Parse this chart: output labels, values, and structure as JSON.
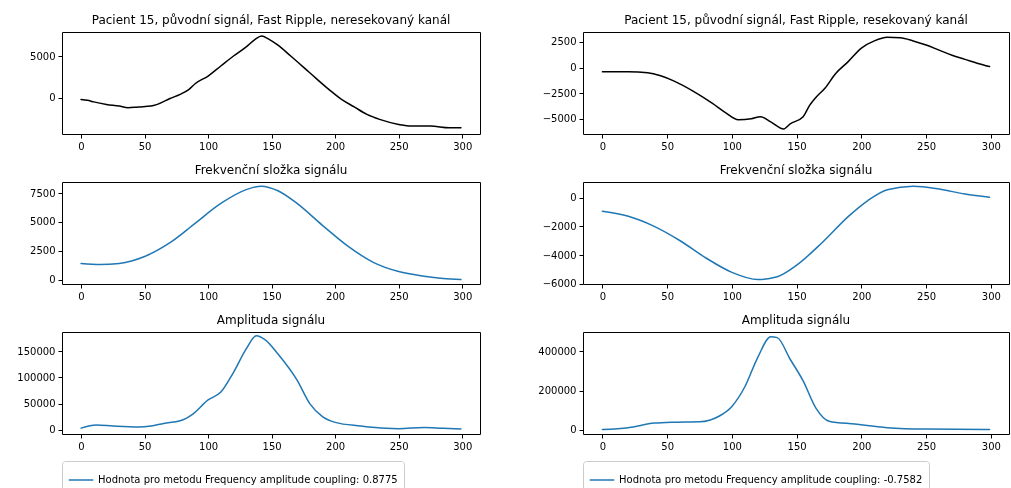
{
  "chart_data": [
    {
      "type": "line",
      "title": "Pacient 15, původní signál, Fast Ripple, neresekovaný kanál",
      "xlim": [
        -15,
        314
      ],
      "xticks": [
        0,
        50,
        100,
        150,
        200,
        250,
        300
      ],
      "ylim": [
        -4350,
        7880
      ],
      "yticks": [
        0,
        5000
      ],
      "series": [
        {
          "color": "#000000",
          "x": [
            0,
            5,
            10,
            20,
            30,
            37,
            45,
            55,
            60,
            70,
            78,
            85,
            90,
            100,
            110,
            120,
            130,
            137,
            142,
            148,
            155,
            165,
            180,
            195,
            205,
            215,
            225,
            235,
            250,
            260,
            275,
            290,
            299
          ],
          "values": [
            -200,
            -300,
            -500,
            -800,
            -1000,
            -1200,
            -1100,
            -1000,
            -800,
            -100,
            400,
            1000,
            1700,
            2600,
            3800,
            5000,
            6100,
            7000,
            7400,
            7000,
            6300,
            5000,
            3000,
            1000,
            -200,
            -1100,
            -2000,
            -2600,
            -3200,
            -3400,
            -3400,
            -3600,
            -3600
          ]
        }
      ]
    },
    {
      "type": "line",
      "title": "Pacient 15, původní signál, Fast Ripple, resekovaný kanál",
      "xlim": [
        -15,
        314
      ],
      "xticks": [
        0,
        50,
        100,
        150,
        200,
        250,
        300
      ],
      "ylim": [
        -6490,
        3470
      ],
      "yticks": [
        -5000,
        -2500,
        0,
        2500
      ],
      "series": [
        {
          "color": "#000000",
          "x": [
            0,
            20,
            35,
            45,
            55,
            70,
            85,
            95,
            105,
            115,
            122,
            130,
            140,
            145,
            155,
            160,
            165,
            172,
            180,
            190,
            200,
            210,
            220,
            230,
            240,
            250,
            260,
            270,
            280,
            290,
            299
          ],
          "values": [
            -400,
            -400,
            -500,
            -800,
            -1300,
            -2300,
            -3500,
            -4400,
            -5100,
            -5000,
            -4800,
            -5300,
            -6000,
            -5500,
            -4800,
            -3700,
            -2900,
            -2000,
            -600,
            600,
            1900,
            2600,
            2950,
            2900,
            2600,
            2200,
            1700,
            1200,
            800,
            400,
            100
          ]
        }
      ]
    },
    {
      "type": "line",
      "title": "Frekvenční složka signálu",
      "xlim": [
        -15,
        314
      ],
      "xticks": [
        0,
        50,
        100,
        150,
        200,
        250,
        300
      ],
      "ylim": [
        -380,
        8460
      ],
      "yticks": [
        0,
        2500,
        5000,
        7500
      ],
      "series": [
        {
          "color": "#1f77b4",
          "x": [
            0,
            15,
            30,
            50,
            70,
            90,
            110,
            130,
            142,
            155,
            170,
            190,
            210,
            230,
            250,
            270,
            285,
            299
          ],
          "values": [
            1400,
            1300,
            1400,
            2000,
            3200,
            4900,
            6600,
            7800,
            8100,
            7700,
            6600,
            4700,
            2900,
            1500,
            700,
            300,
            100,
            0
          ]
        }
      ]
    },
    {
      "type": "line",
      "title": "Frekvenční složka signálu",
      "xlim": [
        -15,
        314
      ],
      "xticks": [
        0,
        50,
        100,
        150,
        200,
        250,
        300
      ],
      "ylim": [
        -6010,
        1090
      ],
      "yticks": [
        -6000,
        -4000,
        -2000,
        0
      ],
      "series": [
        {
          "color": "#1f77b4",
          "x": [
            0,
            20,
            40,
            60,
            80,
            100,
            120,
            135,
            150,
            170,
            190,
            205,
            220,
            240,
            260,
            280,
            299
          ],
          "values": [
            -950,
            -1300,
            -2000,
            -3000,
            -4200,
            -5200,
            -5700,
            -5500,
            -4700,
            -3100,
            -1300,
            -200,
            550,
            800,
            600,
            250,
            30
          ]
        }
      ]
    },
    {
      "type": "line",
      "title": "Amplituda signálu",
      "xlim": [
        -15,
        314
      ],
      "xticks": [
        0,
        50,
        100,
        150,
        200,
        250,
        300
      ],
      "ylim": [
        -8300,
        187200
      ],
      "yticks": [
        0,
        50000,
        100000,
        150000
      ],
      "legend": "bottom",
      "series": [
        {
          "name": "Hodnota pro metodu Frequency amplitude coupling: 0.8775",
          "color": "#1f77b4",
          "x": [
            0,
            12,
            25,
            45,
            55,
            65,
            78,
            88,
            100,
            110,
            120,
            130,
            138,
            145,
            155,
            170,
            180,
            190,
            200,
            220,
            240,
            250,
            270,
            285,
            299
          ],
          "values": [
            3000,
            9000,
            7000,
            5000,
            7000,
            12000,
            17000,
            30000,
            57000,
            72000,
            110000,
            155000,
            180000,
            172000,
            145000,
            95000,
            50000,
            25000,
            14000,
            7000,
            2500,
            2000,
            4000,
            2500,
            1500
          ]
        }
      ]
    },
    {
      "type": "line",
      "title": "Amplituda signálu",
      "xlim": [
        -15,
        314
      ],
      "xticks": [
        0,
        50,
        100,
        150,
        200,
        250,
        300
      ],
      "ylim": [
        -20400,
        498700
      ],
      "yticks": [
        0,
        200000,
        400000
      ],
      "legend": "bottom",
      "series": [
        {
          "name": "Hodnota pro metodu Frequency amplitude coupling: -0.7582",
          "color": "#1f77b4",
          "x": [
            0,
            20,
            40,
            55,
            75,
            90,
            100,
            110,
            120,
            130,
            135,
            145,
            155,
            165,
            175,
            195,
            220,
            250,
            299
          ],
          "values": [
            3000,
            12000,
            35000,
            40000,
            42000,
            70000,
            120000,
            220000,
            370000,
            475000,
            470000,
            360000,
            250000,
            110000,
            45000,
            30000,
            12000,
            5000,
            3000
          ]
        }
      ]
    }
  ]
}
